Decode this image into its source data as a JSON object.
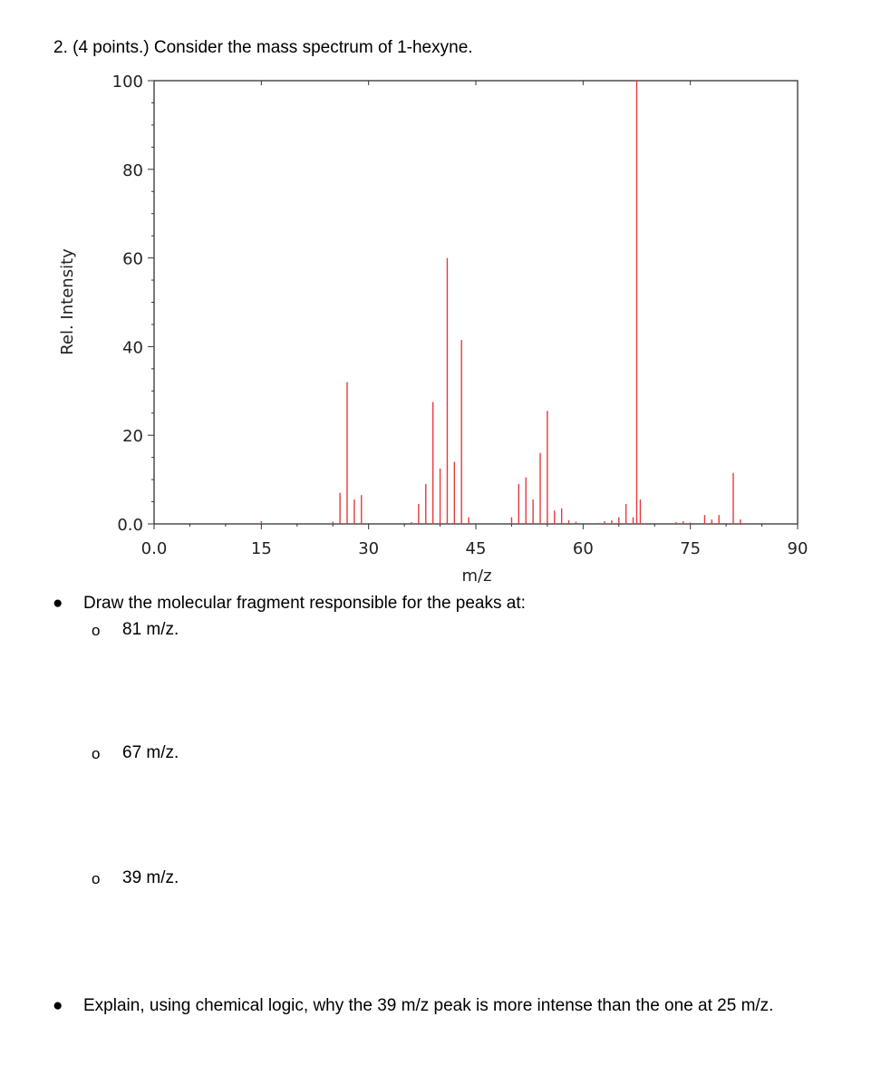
{
  "question": {
    "title": "2. (4 points.) Consider the mass spectrum of 1-hexyne."
  },
  "bullets": [
    {
      "text": "Draw the molecular fragment responsible for the peaks at:",
      "subitems": [
        "81 m/z.",
        "67 m/z.",
        "39 m/z."
      ]
    },
    {
      "text": "Explain, using chemical logic, why the 39 m/z peak is more intense than the one at 25 m/z."
    }
  ],
  "markers": {
    "bullet": "●",
    "sub": "o"
  },
  "chart_data": {
    "type": "bar",
    "xlabel": "m/z",
    "ylabel": "Rel. Intensity",
    "xlim": [
      0,
      90
    ],
    "ylim": [
      0,
      100
    ],
    "x_ticks": [
      "0.0",
      "15",
      "30",
      "45",
      "60",
      "75",
      "90"
    ],
    "y_ticks": [
      "0.0",
      "20",
      "40",
      "60",
      "80",
      "100"
    ],
    "bar_color": "#e8383d",
    "peaks": [
      {
        "x": 15,
        "y": 0.6
      },
      {
        "x": 25,
        "y": 0.5
      },
      {
        "x": 26,
        "y": 7
      },
      {
        "x": 27,
        "y": 32
      },
      {
        "x": 28,
        "y": 5.5
      },
      {
        "x": 29,
        "y": 6.5
      },
      {
        "x": 36,
        "y": 0.4
      },
      {
        "x": 37,
        "y": 4.5
      },
      {
        "x": 38,
        "y": 9
      },
      {
        "x": 39,
        "y": 27.5
      },
      {
        "x": 40,
        "y": 12.5
      },
      {
        "x": 41,
        "y": 60
      },
      {
        "x": 42,
        "y": 14
      },
      {
        "x": 43,
        "y": 41.5
      },
      {
        "x": 44,
        "y": 1.5
      },
      {
        "x": 50,
        "y": 1.5
      },
      {
        "x": 51,
        "y": 9
      },
      {
        "x": 52,
        "y": 10.5
      },
      {
        "x": 53,
        "y": 5.5
      },
      {
        "x": 54,
        "y": 16
      },
      {
        "x": 55,
        "y": 25.5
      },
      {
        "x": 56,
        "y": 3
      },
      {
        "x": 57,
        "y": 3.5
      },
      {
        "x": 58,
        "y": 0.8
      },
      {
        "x": 59,
        "y": 0.5
      },
      {
        "x": 63,
        "y": 0.6
      },
      {
        "x": 64,
        "y": 0.8
      },
      {
        "x": 65,
        "y": 1.5
      },
      {
        "x": 66,
        "y": 4.5
      },
      {
        "x": 67,
        "y": 1.5
      },
      {
        "x": 67.5,
        "y": 100
      },
      {
        "x": 68,
        "y": 5.5
      },
      {
        "x": 73,
        "y": 0.4
      },
      {
        "x": 74,
        "y": 0.6
      },
      {
        "x": 75,
        "y": 0.3
      },
      {
        "x": 77,
        "y": 2
      },
      {
        "x": 78,
        "y": 1
      },
      {
        "x": 79,
        "y": 2
      },
      {
        "x": 81,
        "y": 11.5
      },
      {
        "x": 82,
        "y": 1
      }
    ]
  }
}
